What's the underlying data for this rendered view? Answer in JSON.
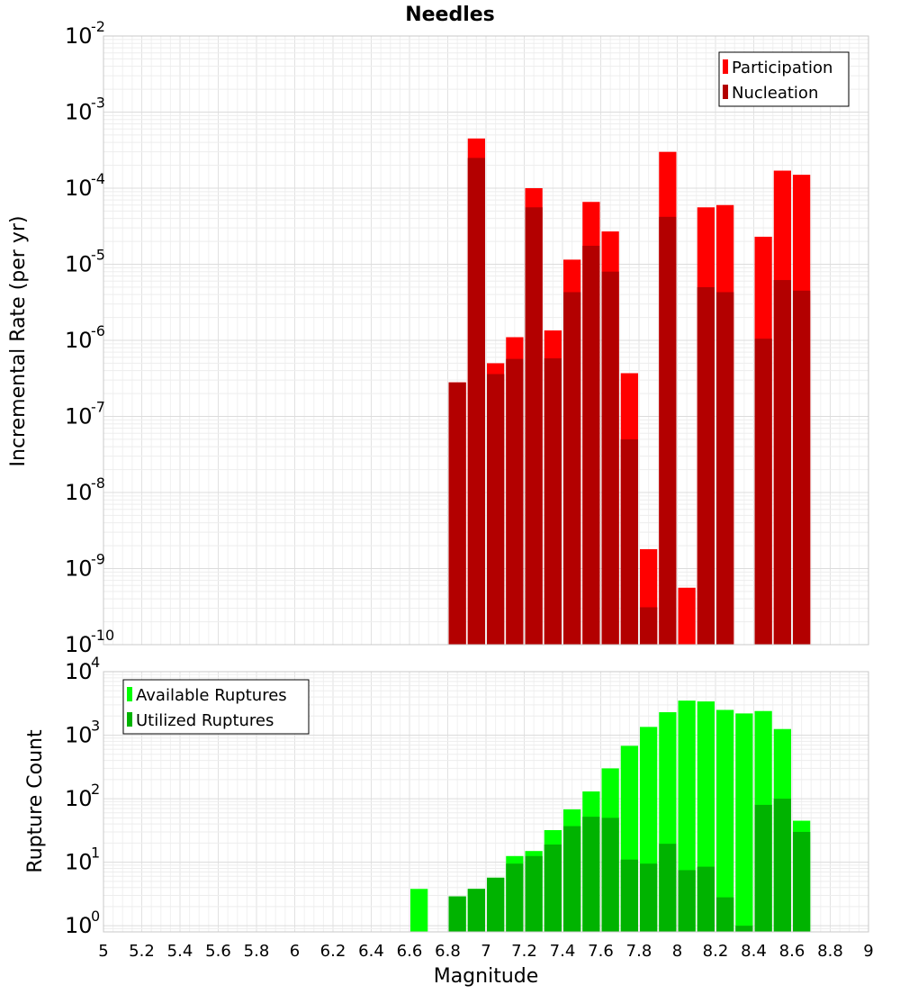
{
  "chart_data": {
    "title": "Needles",
    "xlabel": "Magnitude",
    "xlim": [
      5,
      9
    ],
    "x_ticks": [
      "5",
      "5.2",
      "5.4",
      "5.6",
      "5.8",
      "6",
      "6.2",
      "6.4",
      "6.6",
      "6.8",
      "7",
      "7.2",
      "7.4",
      "7.6",
      "7.8",
      "8",
      "8.2",
      "8.4",
      "8.6",
      "8.8",
      "9"
    ],
    "bin_width": 0.1,
    "panels": [
      {
        "type": "bar",
        "ylabel": "Incremental Rate (per yr)",
        "yscale": "log",
        "ylim_exponents": [
          -10,
          -2
        ],
        "y_tick_exponents": [
          "-10",
          "-9",
          "-8",
          "-7",
          "-6",
          "-5",
          "-4",
          "-3",
          "-2"
        ],
        "y_tick_base": "10",
        "grid": true,
        "legend_position": "top-right",
        "series": [
          {
            "name": "Participation",
            "color": "#ff0000",
            "x": [
              6.85,
              6.95,
              7.05,
              7.15,
              7.25,
              7.35,
              7.45,
              7.55,
              7.65,
              7.75,
              7.85,
              7.95,
              8.05,
              8.15,
              8.25,
              8.45,
              8.55,
              8.65
            ],
            "values": [
              2.8e-07,
              0.00045,
              5e-07,
              1.1e-06,
              0.0001,
              1.35e-06,
              1.15e-05,
              6.6e-05,
              2.7e-05,
              3.7e-07,
              1.8e-09,
              0.0003,
              5.6e-10,
              5.6e-05,
              6e-05,
              2.3e-05,
              0.00017,
              0.00015
            ]
          },
          {
            "name": "Nucleation",
            "color": "#b30000",
            "x": [
              6.85,
              6.95,
              7.05,
              7.15,
              7.25,
              7.35,
              7.45,
              7.55,
              7.65,
              7.75,
              7.85,
              7.95,
              8.15,
              8.25,
              8.45,
              8.55,
              8.65
            ],
            "values": [
              2.8e-07,
              0.00025,
              3.6e-07,
              5.7e-07,
              5.6e-05,
              5.8e-07,
              4.3e-06,
              1.75e-05,
              8e-06,
              5e-08,
              3.1e-10,
              4.2e-05,
              5e-06,
              4.3e-06,
              1.05e-06,
              6.2e-06,
              4.5e-06
            ]
          }
        ]
      },
      {
        "type": "bar",
        "ylabel": "Rupture Count",
        "yscale": "log",
        "ylim": [
          0.8,
          10000
        ],
        "y_tick_exponents": [
          "0",
          "1",
          "2",
          "3",
          "4"
        ],
        "y_tick_base": "10",
        "grid": true,
        "legend_position": "top-left",
        "series": [
          {
            "name": "Available Ruptures",
            "color": "#00ff00",
            "x": [
              6.65,
              6.85,
              6.95,
              7.05,
              7.15,
              7.25,
              7.35,
              7.45,
              7.55,
              7.65,
              7.75,
              7.85,
              7.95,
              8.05,
              8.15,
              8.25,
              8.35,
              8.45,
              8.55,
              8.65
            ],
            "values": [
              3.8,
              2.9,
              3.8,
              5.7,
              12.5,
              15,
              32,
              68,
              130,
              300,
              680,
              1350,
              2300,
              3500,
              3400,
              2500,
              2200,
              2400,
              1250,
              45
            ]
          },
          {
            "name": "Utilized Ruptures",
            "color": "#00b300",
            "x": [
              6.85,
              6.95,
              7.05,
              7.15,
              7.25,
              7.35,
              7.45,
              7.55,
              7.65,
              7.75,
              7.85,
              7.95,
              8.05,
              8.15,
              8.25,
              8.35,
              8.45,
              8.55,
              8.65
            ],
            "values": [
              2.9,
              3.8,
              5.7,
              9.5,
              12.5,
              19,
              37,
              52,
              50,
              11,
              9.5,
              19.5,
              7.5,
              8.5,
              2.8,
              1.0,
              80,
              100,
              30
            ]
          }
        ]
      }
    ]
  }
}
